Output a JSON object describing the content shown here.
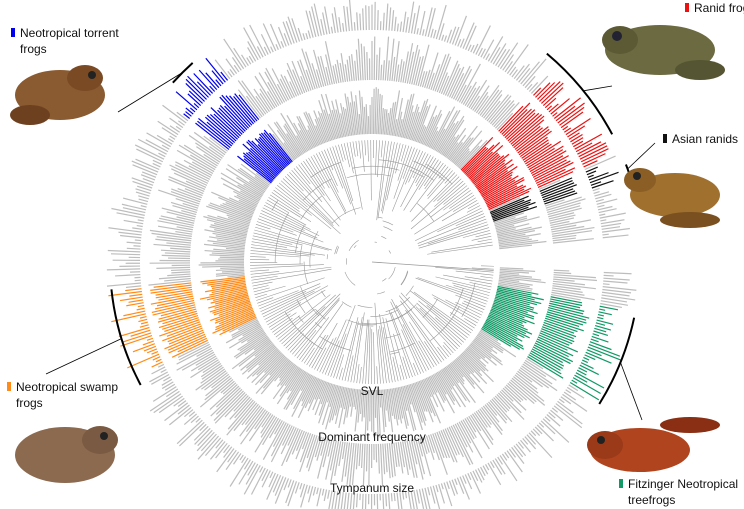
{
  "rings": [
    {
      "label": "SVL"
    },
    {
      "label": "Dominant frequency"
    },
    {
      "label": "Tympanum size"
    }
  ],
  "clades": [
    {
      "lines": [
        "Neotropical torrent",
        "frogs"
      ],
      "color": "#0000ee"
    },
    {
      "lines": [
        "Ranid frogs"
      ],
      "color": "#ee1111"
    },
    {
      "lines": [
        "Asian ranids"
      ],
      "color": "#111111"
    },
    {
      "lines": [
        "Neotropical swamp",
        "frogs"
      ],
      "color": "#ff8c1a"
    },
    {
      "lines": [
        "Fitzinger Neotropical",
        "treefrogs"
      ],
      "color": "#119966"
    }
  ]
}
